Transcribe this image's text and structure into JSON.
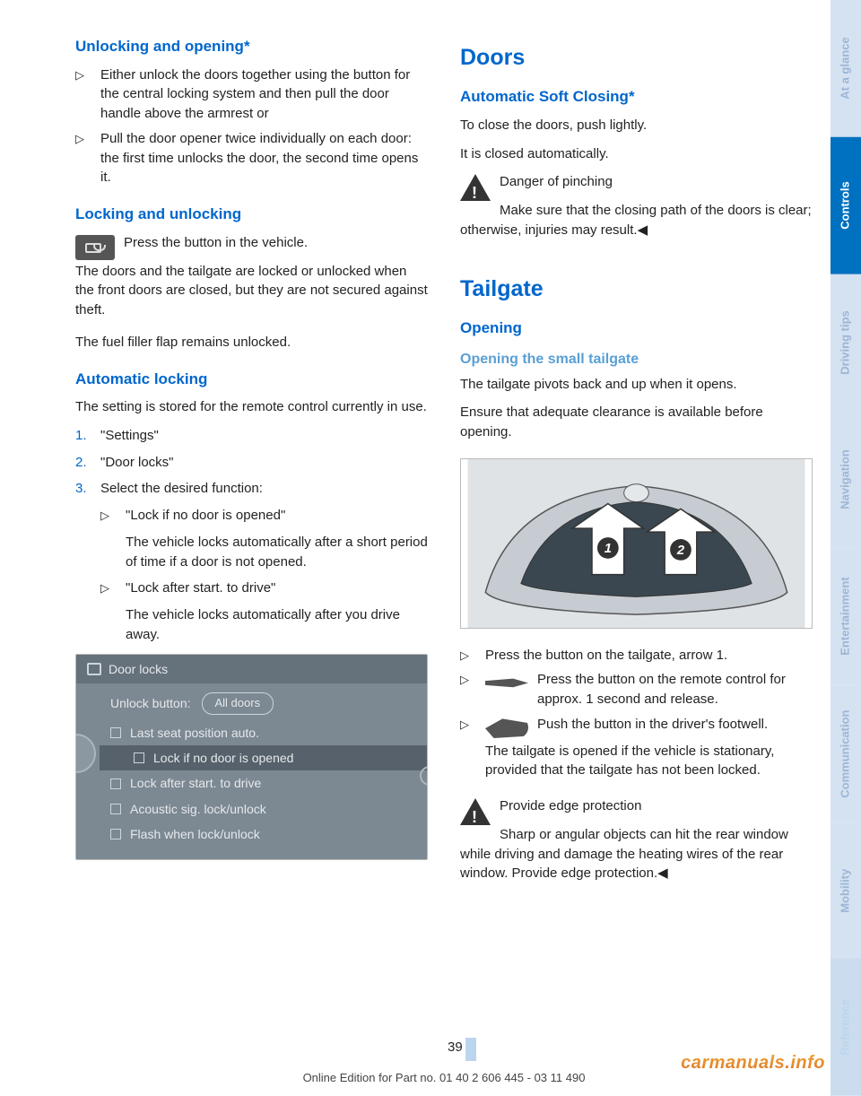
{
  "left": {
    "h_unlock": "Unlocking and opening*",
    "unlock_items": [
      "Either unlock the doors together using the button for the central locking system and then pull the door handle above the armrest or",
      "Pull the door opener twice individually on each door: the first time unlocks the door, the second time opens it."
    ],
    "h_lockunlock": "Locking and unlocking",
    "lock_p1": "Press the button in the vehicle.",
    "lock_p2": "The doors and the tailgate are locked or unlocked when the front doors are closed, but they are not secured against theft.",
    "lock_p3": "The fuel filler flap remains unlocked.",
    "h_auto": "Automatic locking",
    "auto_p": "The setting is stored for the remote control currently in use.",
    "steps": [
      "\"Settings\"",
      "\"Door locks\"",
      "Select the desired function:"
    ],
    "sub": [
      {
        "t": "\"Lock if no door is opened\"",
        "d": "The vehicle locks automatically after a short period of time if a door is not opened."
      },
      {
        "t": "\"Lock after start. to drive\"",
        "d": "The vehicle locks automatically after you drive away."
      }
    ],
    "menu": {
      "title": "Door locks",
      "unlock_label": "Unlock button:",
      "unlock_value": "All doors",
      "rows": [
        "Last seat position auto.",
        "Lock if no door is opened",
        "Lock after start. to drive",
        "Acoustic sig. lock/unlock",
        "Flash when lock/unlock"
      ],
      "highlight_index": 1
    }
  },
  "right": {
    "h_doors": "Doors",
    "h_softclose": "Automatic Soft Closing*",
    "soft_p1": "To close the doors, push lightly.",
    "soft_p2": "It is closed automatically.",
    "warn1_t": "Danger of pinching",
    "warn1_b": "Make sure that the closing path of the doors is clear; otherwise, injuries may result.◀",
    "h_tailgate": "Tailgate",
    "h_opening": "Opening",
    "h_small": "Opening the small tailgate",
    "tg_p1": "The tailgate pivots back and up when it opens.",
    "tg_p2": "Ensure that adequate clearance is available before opening.",
    "tg_b1": "Press the button on the tailgate, arrow 1.",
    "tg_b2": "Press the button on the remote control for approx. 1 second and release.",
    "tg_b3": "Push the button in the driver's footwell.",
    "tg_b3b": "The tailgate is opened if the vehicle is stationary, provided that the tailgate has not been locked.",
    "warn2_t": "Provide edge protection",
    "warn2_b": "Sharp or angular objects can hit the rear window while driving and damage the heating wires of the rear window. Provide edge protection.◀"
  },
  "tabs": [
    "At a glance",
    "Controls",
    "Driving tips",
    "Navigation",
    "Entertainment",
    "Communication",
    "Mobility",
    "Reference"
  ],
  "tab_colors": [
    "#d5e2f1",
    "#0070c0",
    "#d5e2f1",
    "#d5e2f1",
    "#d5e2f1",
    "#d5e2f1",
    "#d5e2f1",
    "#cadced"
  ],
  "tab_text_colors": [
    "#9cb6d6",
    "#ffffff",
    "#9cb6d6",
    "#9cb6d6",
    "#9cb6d6",
    "#9cb6d6",
    "#9cb6d6",
    "#bcd5ef"
  ],
  "page_number": "39",
  "footer": "Online Edition for Part no. 01 40 2 606 445 - 03 11 490",
  "watermark": "carmanuals.info"
}
